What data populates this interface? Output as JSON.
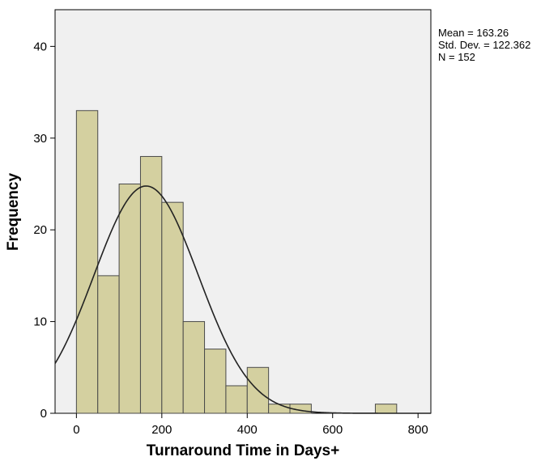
{
  "chart_data": {
    "type": "bar",
    "subtype": "histogram",
    "xlabel": "Turnaround Time in Days+",
    "ylabel": "Frequency",
    "xlim": [
      -50,
      830
    ],
    "ylim": [
      0,
      44
    ],
    "x_ticks": [
      0,
      200,
      400,
      600,
      800
    ],
    "y_ticks": [
      0,
      10,
      20,
      30,
      40
    ],
    "bin_width": 50,
    "bin_starts": [
      0,
      50,
      100,
      150,
      200,
      250,
      300,
      350,
      400,
      450,
      500,
      550,
      600,
      650,
      700
    ],
    "values": [
      33,
      15,
      25,
      28,
      23,
      10,
      7,
      3,
      5,
      1,
      1,
      0,
      0,
      0,
      1
    ],
    "bar_color": "#d4d0a0",
    "bar_stroke": "#4a4a4a",
    "plot_background": "#f0f0f0",
    "normal_curve": {
      "mean": 163.26,
      "std": 122.362,
      "n": 152
    },
    "stats_labels": [
      "Mean = 163.26",
      "Std. Dev. = 122.362",
      "N = 152"
    ],
    "legend_position": "top-right",
    "grid": false
  }
}
